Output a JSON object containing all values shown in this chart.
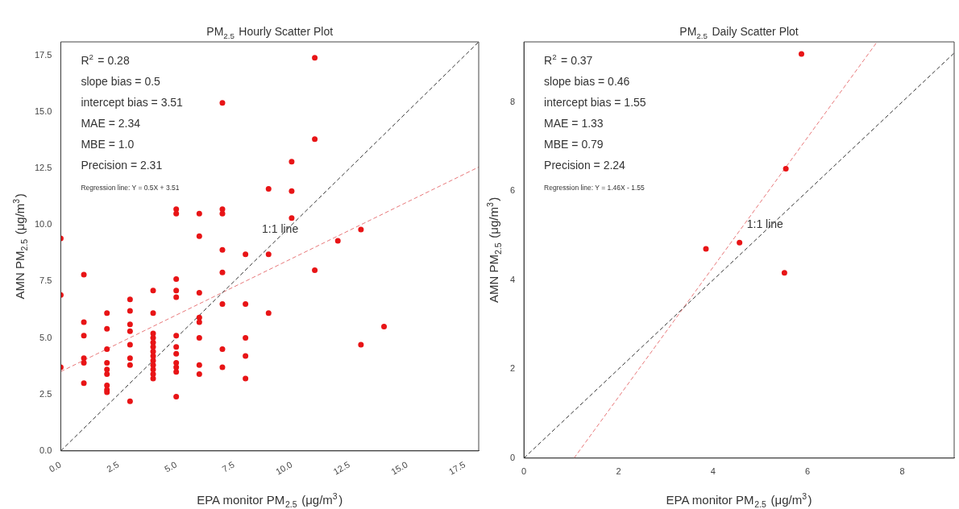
{
  "chart_data": [
    {
      "type": "scatter",
      "title": "PM$_{2.5}$ Hourly Scatter Plot",
      "xlabel": "EPA monitor PM$_{2.5}$ (μg/m$^{3}$)",
      "ylabel": "AMN PM$_{2.5}$ (μg/m$^{3}$)",
      "xlim": [
        0,
        18.1
      ],
      "ylim": [
        0,
        18.1
      ],
      "xticks": [
        {
          "value": 0,
          "label": "0.0"
        },
        {
          "value": 2.5,
          "label": "2.5"
        },
        {
          "value": 5,
          "label": "5.0"
        },
        {
          "value": 7.5,
          "label": "7.5"
        },
        {
          "value": 10,
          "label": "10.0"
        },
        {
          "value": 12.5,
          "label": "12.5"
        },
        {
          "value": 15,
          "label": "15.0"
        },
        {
          "value": 17.5,
          "label": "17.5"
        }
      ],
      "yticks": [
        {
          "value": 0,
          "label": "0.0"
        },
        {
          "value": 2.5,
          "label": "2.5"
        },
        {
          "value": 5,
          "label": "5.0"
        },
        {
          "value": 7.5,
          "label": "7.5"
        },
        {
          "value": 10,
          "label": "10.0"
        },
        {
          "value": 12.5,
          "label": "12.5"
        },
        {
          "value": 15,
          "label": "15.0"
        },
        {
          "value": 17.5,
          "label": "17.5"
        }
      ],
      "grid": false,
      "legend": false,
      "marker": "circle",
      "series": [
        {
          "type": "scatter",
          "color": "#e81416",
          "x": [
            0,
            0,
            0,
            1,
            1,
            1,
            1,
            1,
            1,
            2,
            2,
            2,
            2,
            2,
            2,
            2,
            2,
            2,
            3,
            3,
            3,
            3,
            3,
            3,
            3,
            3,
            4,
            4,
            4,
            4,
            4,
            4,
            4,
            4,
            4,
            4,
            4,
            4,
            4,
            5,
            5,
            5,
            5,
            5,
            5,
            5,
            5,
            5,
            5,
            5,
            5,
            6,
            6,
            6,
            6,
            6,
            6,
            6,
            6,
            7,
            7,
            7,
            7,
            7,
            7,
            7,
            7,
            8,
            8,
            8,
            8,
            8,
            9,
            9,
            9,
            10,
            10,
            10,
            11,
            11,
            11,
            12,
            13,
            13,
            14
          ],
          "values": [
            9.4,
            6.9,
            3.7,
            7.8,
            5.7,
            5.1,
            4.1,
            3.9,
            3.0,
            6.1,
            5.4,
            4.5,
            3.9,
            3.6,
            3.4,
            2.9,
            2.7,
            2.6,
            6.7,
            6.2,
            5.6,
            5.3,
            4.7,
            4.1,
            3.8,
            2.2,
            7.1,
            6.1,
            5.2,
            5.0,
            4.8,
            4.6,
            4.4,
            4.2,
            4.0,
            3.8,
            3.6,
            3.4,
            3.2,
            10.7,
            10.5,
            7.6,
            7.1,
            6.8,
            5.1,
            4.6,
            4.3,
            3.9,
            3.7,
            3.5,
            2.4,
            10.5,
            9.5,
            7.0,
            5.9,
            5.7,
            5.0,
            3.8,
            3.4,
            15.4,
            10.7,
            10.5,
            8.9,
            7.9,
            6.5,
            4.5,
            3.7,
            8.7,
            6.5,
            5.0,
            4.2,
            3.2,
            11.6,
            8.7,
            6.1,
            12.8,
            11.5,
            10.3,
            17.4,
            13.8,
            8.0,
            9.3,
            9.8,
            4.7,
            5.5
          ]
        },
        {
          "type": "line",
          "color": "#333333",
          "line_style": "dashed",
          "marker": "none",
          "x": [
            0,
            18.1
          ],
          "values": [
            0,
            18.1
          ]
        },
        {
          "type": "line",
          "color": "#e8787a",
          "line_style": "dashed",
          "marker": "none",
          "x": [
            0,
            18.1
          ],
          "values": [
            3.51,
            12.56
          ]
        }
      ],
      "annotations": [
        "R$^{2}$ = 0.28",
        "slope bias = 0.5",
        "intercept bias = 3.51",
        "MAE = 2.34",
        "MBE = 1.0",
        "Precision = 2.31",
        "Regression line: Y = 0.5X + 3.51",
        {
          "text": "1:1 line",
          "x": 9.5,
          "y": 9.5
        }
      ]
    },
    {
      "type": "scatter",
      "title": "PM$_{2.5}$ Daily Scatter Plot",
      "xlabel": "EPA monitor PM$_{2.5}$ (μg/m$^{3}$)",
      "ylabel": "AMN PM$_{2.5}$ (μg/m$^{3}$)",
      "xlim": [
        0,
        9.1
      ],
      "ylim": [
        0,
        9.35
      ],
      "xticks": [
        0,
        2,
        4,
        6,
        8
      ],
      "yticks": [
        0,
        2,
        4,
        6,
        8
      ],
      "grid": false,
      "legend": false,
      "marker": "circle",
      "series": [
        {
          "type": "scatter",
          "color": "#e81416",
          "x": [
            5.87,
            5.54,
            3.85,
            4.56,
            5.51
          ],
          "values": [
            9.08,
            6.5,
            4.7,
            4.84,
            4.16
          ]
        },
        {
          "type": "line",
          "color": "#333333",
          "line_style": "dashed",
          "marker": "none",
          "x": [
            0,
            9.1
          ],
          "values": [
            0,
            9.1
          ]
        },
        {
          "type": "line",
          "color": "#e8787a",
          "line_style": "dashed",
          "marker": "none",
          "x": [
            1.06,
            7.47
          ],
          "values": [
            0,
            9.35
          ]
        }
      ],
      "annotations": [
        "R$^{2}$ = 0.37",
        "slope bias = 0.46",
        "intercept bias = 1.55",
        "MAE = 1.33",
        "MBE = 0.79",
        "Precision = 2.24",
        "Regression line: Y = 1.46X - 1.55",
        {
          "text": "1:1 line",
          "x": 5.1,
          "y": 5.1
        }
      ]
    }
  ]
}
